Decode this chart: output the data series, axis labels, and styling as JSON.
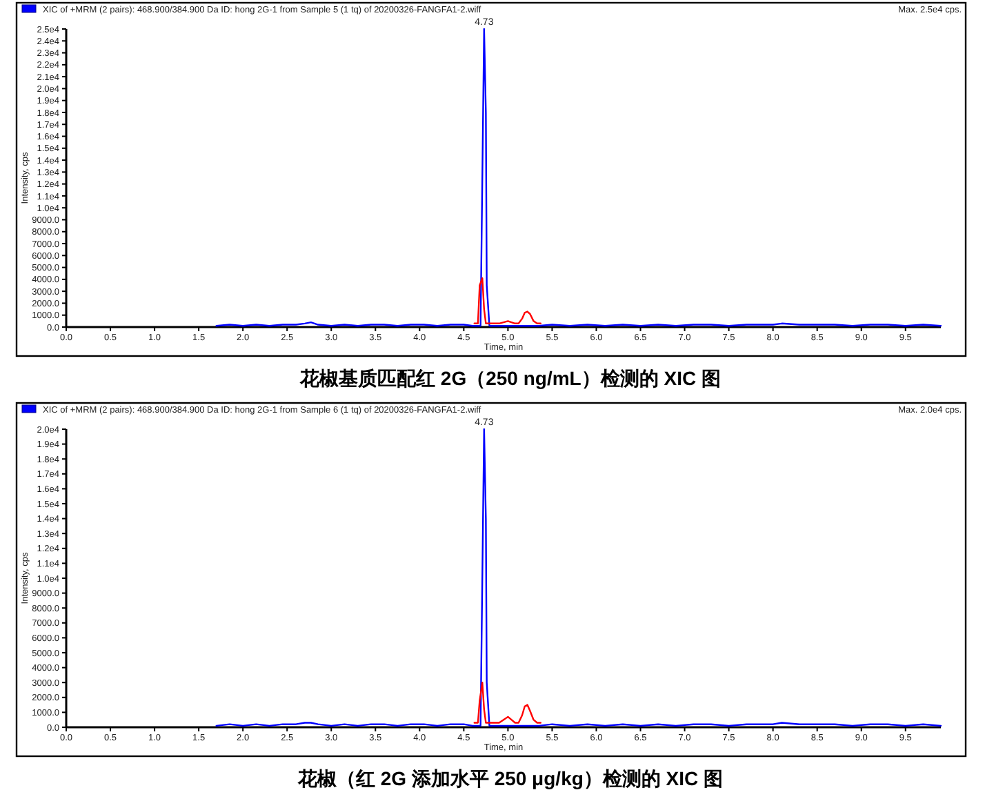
{
  "chart_data": [
    {
      "type": "line",
      "title": "花椒基质匹配红 2G（250 ng/mL）检测的 XIC 图",
      "xlabel": "Time, min",
      "ylabel": "Intensity, cps",
      "legend": "top left",
      "xlim": [
        0,
        9.9
      ],
      "xticks": [
        {
          "value": 0,
          "label": "0.0"
        },
        {
          "value": 0.5,
          "label": "0.5"
        },
        {
          "value": 1,
          "label": "1.0"
        },
        {
          "value": 1.5,
          "label": "1.5"
        },
        {
          "value": 2,
          "label": "2.0"
        },
        {
          "value": 2.5,
          "label": "2.5"
        },
        {
          "value": 3,
          "label": "3.0"
        },
        {
          "value": 3.5,
          "label": "3.5"
        },
        {
          "value": 4,
          "label": "4.0"
        },
        {
          "value": 4.5,
          "label": "4.5"
        },
        {
          "value": 5,
          "label": "5.0"
        },
        {
          "value": 5.5,
          "label": "5.5"
        },
        {
          "value": 6,
          "label": "6.0"
        },
        {
          "value": 6.5,
          "label": "6.5"
        },
        {
          "value": 7,
          "label": "7.0"
        },
        {
          "value": 7.5,
          "label": "7.5"
        },
        {
          "value": 8,
          "label": "8.0"
        },
        {
          "value": 8.5,
          "label": "8.5"
        },
        {
          "value": 9,
          "label": "9.0"
        },
        {
          "value": 9.5,
          "label": "9.5"
        }
      ],
      "ylim": [
        0,
        25000
      ],
      "yticks": [
        {
          "value": 0,
          "label": "0.0"
        },
        {
          "value": 1000,
          "label": "1000.0"
        },
        {
          "value": 2000,
          "label": "2000.0"
        },
        {
          "value": 3000,
          "label": "3000.0"
        },
        {
          "value": 4000,
          "label": "4000.0"
        },
        {
          "value": 5000,
          "label": "5000.0"
        },
        {
          "value": 6000,
          "label": "6000.0"
        },
        {
          "value": 7000,
          "label": "7000.0"
        },
        {
          "value": 8000,
          "label": "8000.0"
        },
        {
          "value": 9000,
          "label": "9000.0"
        },
        {
          "value": 10000,
          "label": "1.0e4"
        },
        {
          "value": 11000,
          "label": "1.1e4"
        },
        {
          "value": 12000,
          "label": "1.2e4"
        },
        {
          "value": 13000,
          "label": "1.3e4"
        },
        {
          "value": 14000,
          "label": "1.4e4"
        },
        {
          "value": 15000,
          "label": "1.5e4"
        },
        {
          "value": 16000,
          "label": "1.6e4"
        },
        {
          "value": 17000,
          "label": "1.7e4"
        },
        {
          "value": 18000,
          "label": "1.8e4"
        },
        {
          "value": 19000,
          "label": "1.9e4"
        },
        {
          "value": 20000,
          "label": "2.0e4"
        },
        {
          "value": 21000,
          "label": "2.1e4"
        },
        {
          "value": 22000,
          "label": "2.2e4"
        },
        {
          "value": 23000,
          "label": "2.3e4"
        },
        {
          "value": 24000,
          "label": "2.4e4"
        },
        {
          "value": 25000,
          "label": "2.5e4"
        }
      ],
      "annotations": [
        {
          "text": "4.73",
          "x": 4.73,
          "y": 25000
        },
        "Max. 2.5e4 cps."
      ],
      "series": [
        {
          "name": "XIC of +MRM (2 pairs): 468.900/384.900 Da ID: hong 2G-1 from Sample 5 (1 tq) of 20200326-FANGFA1-2.wiff",
          "color": "#0000ff",
          "x": [
            1.7,
            1.85,
            2.0,
            2.15,
            2.3,
            2.45,
            2.6,
            2.7,
            2.77,
            2.85,
            3.0,
            3.15,
            3.3,
            3.45,
            3.6,
            3.75,
            3.9,
            4.05,
            4.2,
            4.35,
            4.5,
            4.6,
            4.69,
            4.73,
            4.75,
            4.76,
            4.79,
            4.85,
            4.95,
            5.05,
            5.2,
            5.35,
            5.5,
            5.7,
            5.9,
            6.1,
            6.3,
            6.5,
            6.7,
            6.9,
            7.1,
            7.3,
            7.5,
            7.7,
            7.9,
            8.0,
            8.1,
            8.3,
            8.5,
            8.7,
            8.9,
            9.1,
            9.3,
            9.5,
            9.7,
            9.9
          ],
          "values": [
            100,
            200,
            100,
            200,
            100,
            200,
            200,
            300,
            400,
            200,
            100,
            200,
            100,
            200,
            200,
            100,
            200,
            200,
            100,
            200,
            200,
            100,
            100,
            25000,
            18000,
            3500,
            100,
            100,
            100,
            100,
            100,
            100,
            200,
            100,
            200,
            100,
            200,
            100,
            200,
            100,
            200,
            200,
            100,
            200,
            200,
            200,
            300,
            200,
            200,
            200,
            100,
            200,
            200,
            100,
            200,
            100
          ]
        },
        {
          "color": "#ff0000",
          "x": [
            4.62,
            4.66,
            4.68,
            4.71,
            4.73,
            4.75,
            4.8,
            4.85,
            4.9,
            4.95,
            5.0,
            5.04,
            5.08,
            5.12,
            5.16,
            5.19,
            5.22,
            5.25,
            5.29,
            5.33,
            5.37
          ],
          "values": [
            300,
            300,
            3500,
            4100,
            1500,
            300,
            300,
            300,
            300,
            400,
            500,
            400,
            300,
            300,
            700,
            1200,
            1300,
            1100,
            500,
            300,
            300
          ]
        }
      ]
    },
    {
      "type": "line",
      "title": "花椒（红 2G 添加水平 250 μg/kg）检测的 XIC 图",
      "xlabel": "Time, min",
      "ylabel": "Intensity, cps",
      "legend": "top left",
      "xlim": [
        0,
        9.9
      ],
      "xticks": [
        {
          "value": 0,
          "label": "0.0"
        },
        {
          "value": 0.5,
          "label": "0.5"
        },
        {
          "value": 1,
          "label": "1.0"
        },
        {
          "value": 1.5,
          "label": "1.5"
        },
        {
          "value": 2,
          "label": "2.0"
        },
        {
          "value": 2.5,
          "label": "2.5"
        },
        {
          "value": 3,
          "label": "3.0"
        },
        {
          "value": 3.5,
          "label": "3.5"
        },
        {
          "value": 4,
          "label": "4.0"
        },
        {
          "value": 4.5,
          "label": "4.5"
        },
        {
          "value": 5,
          "label": "5.0"
        },
        {
          "value": 5.5,
          "label": "5.5"
        },
        {
          "value": 6,
          "label": "6.0"
        },
        {
          "value": 6.5,
          "label": "6.5"
        },
        {
          "value": 7,
          "label": "7.0"
        },
        {
          "value": 7.5,
          "label": "7.5"
        },
        {
          "value": 8,
          "label": "8.0"
        },
        {
          "value": 8.5,
          "label": "8.5"
        },
        {
          "value": 9,
          "label": "9.0"
        },
        {
          "value": 9.5,
          "label": "9.5"
        }
      ],
      "ylim": [
        0,
        20000
      ],
      "yticks": [
        {
          "value": 0,
          "label": "0.0"
        },
        {
          "value": 1000,
          "label": "1000.0"
        },
        {
          "value": 2000,
          "label": "2000.0"
        },
        {
          "value": 3000,
          "label": "3000.0"
        },
        {
          "value": 4000,
          "label": "4000.0"
        },
        {
          "value": 5000,
          "label": "5000.0"
        },
        {
          "value": 6000,
          "label": "6000.0"
        },
        {
          "value": 7000,
          "label": "7000.0"
        },
        {
          "value": 8000,
          "label": "8000.0"
        },
        {
          "value": 9000,
          "label": "9000.0"
        },
        {
          "value": 10000,
          "label": "1.0e4"
        },
        {
          "value": 11000,
          "label": "1.1e4"
        },
        {
          "value": 12000,
          "label": "1.2e4"
        },
        {
          "value": 13000,
          "label": "1.3e4"
        },
        {
          "value": 14000,
          "label": "1.4e4"
        },
        {
          "value": 15000,
          "label": "1.5e4"
        },
        {
          "value": 16000,
          "label": "1.6e4"
        },
        {
          "value": 17000,
          "label": "1.7e4"
        },
        {
          "value": 18000,
          "label": "1.8e4"
        },
        {
          "value": 19000,
          "label": "1.9e4"
        },
        {
          "value": 20000,
          "label": "2.0e4"
        }
      ],
      "annotations": [
        {
          "text": "4.73",
          "x": 4.73,
          "y": 20000
        },
        "Max. 2.0e4 cps."
      ],
      "series": [
        {
          "name": "XIC of +MRM (2 pairs): 468.900/384.900 Da ID: hong 2G-1 from Sample 6 (1 tq) of 20200326-FANGFA1-2.wiff",
          "color": "#0000ff",
          "x": [
            1.7,
            1.85,
            2.0,
            2.15,
            2.3,
            2.45,
            2.6,
            2.7,
            2.77,
            2.85,
            3.0,
            3.15,
            3.3,
            3.45,
            3.6,
            3.75,
            3.9,
            4.05,
            4.2,
            4.35,
            4.5,
            4.6,
            4.69,
            4.73,
            4.75,
            4.76,
            4.79,
            4.85,
            4.95,
            5.05,
            5.2,
            5.35,
            5.5,
            5.7,
            5.9,
            6.1,
            6.3,
            6.5,
            6.7,
            6.9,
            7.1,
            7.3,
            7.5,
            7.7,
            7.9,
            8.0,
            8.1,
            8.3,
            8.5,
            8.7,
            8.9,
            9.1,
            9.3,
            9.5,
            9.7,
            9.9
          ],
          "values": [
            100,
            200,
            100,
            200,
            100,
            200,
            200,
            300,
            300,
            200,
            100,
            200,
            100,
            200,
            200,
            100,
            200,
            200,
            100,
            200,
            200,
            100,
            100,
            20000,
            14000,
            3000,
            100,
            100,
            100,
            100,
            100,
            100,
            200,
            100,
            200,
            100,
            200,
            100,
            200,
            100,
            200,
            200,
            100,
            200,
            200,
            200,
            300,
            200,
            200,
            200,
            100,
            200,
            200,
            100,
            200,
            100
          ]
        },
        {
          "color": "#ff0000",
          "x": [
            4.62,
            4.66,
            4.68,
            4.71,
            4.73,
            4.75,
            4.8,
            4.85,
            4.9,
            4.95,
            5.0,
            5.04,
            5.08,
            5.12,
            5.16,
            5.19,
            5.22,
            5.25,
            5.29,
            5.33,
            5.37
          ],
          "values": [
            300,
            300,
            1800,
            3000,
            1200,
            300,
            300,
            300,
            300,
            500,
            700,
            500,
            300,
            300,
            800,
            1400,
            1500,
            1100,
            500,
            300,
            300
          ]
        }
      ]
    }
  ]
}
